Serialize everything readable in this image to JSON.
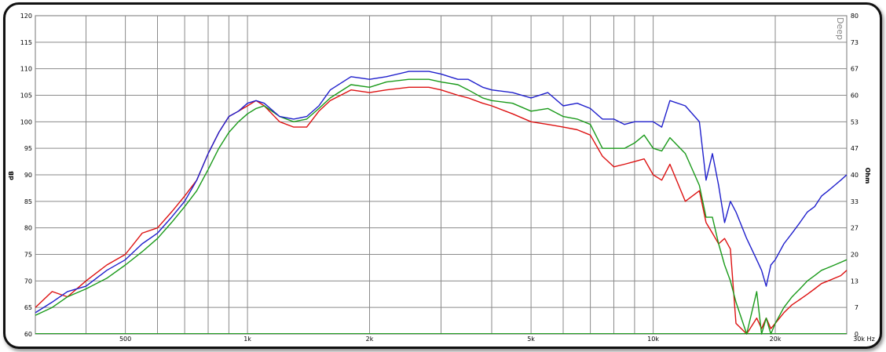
{
  "chart_data": {
    "type": "line",
    "title": "",
    "xlabel": "",
    "ylabel": "dB",
    "ylabel_right": "Ohm",
    "xscale": "log",
    "xlim": [
      300,
      30000
    ],
    "ylim": [
      60,
      120
    ],
    "ylim_right": [
      0,
      80
    ],
    "grid": true,
    "watermark": "Deep",
    "x_tick_labels": [
      {
        "value": 500,
        "label": "500"
      },
      {
        "value": 1000,
        "label": "1k"
      },
      {
        "value": 2000,
        "label": "2k"
      },
      {
        "value": 5000,
        "label": "5k"
      },
      {
        "value": 10000,
        "label": "10k"
      },
      {
        "value": 20000,
        "label": "20k"
      },
      {
        "value": 30000,
        "label": "30k Hz"
      }
    ],
    "x_grid": [
      400,
      500,
      600,
      700,
      800,
      900,
      1000,
      2000,
      3000,
      4000,
      5000,
      6000,
      7000,
      8000,
      9000,
      10000,
      20000
    ],
    "y_ticks": [
      "60",
      "65",
      "70",
      "75",
      "80",
      "85",
      "90",
      "95",
      "100",
      "105",
      "110",
      "115",
      "120"
    ],
    "y_right_ticks": [
      "0",
      "7",
      "13",
      "20",
      "27",
      "33",
      "40",
      "47",
      "53",
      "60",
      "67",
      "73",
      "80"
    ],
    "series": [
      {
        "color": "#1f1fcc",
        "x": [
          300,
          330,
          360,
          400,
          450,
          500,
          550,
          600,
          650,
          700,
          750,
          800,
          850,
          900,
          950,
          1000,
          1050,
          1100,
          1200,
          1300,
          1400,
          1500,
          1600,
          1800,
          2000,
          2200,
          2500,
          2800,
          3000,
          3300,
          3500,
          3800,
          4000,
          4500,
          5000,
          5500,
          6000,
          6500,
          7000,
          7500,
          8000,
          8500,
          9000,
          9500,
          10000,
          10500,
          11000,
          12000,
          13000,
          13500,
          14000,
          14500,
          15000,
          15500,
          16000,
          17000,
          18000,
          18500,
          19000,
          19500,
          20000,
          21000,
          22000,
          23000,
          24000,
          25000,
          26000,
          27000,
          28000,
          29000,
          30000
        ],
        "values": [
          64,
          66,
          68,
          69,
          72,
          74,
          77,
          79,
          82,
          85,
          89,
          94,
          98,
          101,
          102,
          103.5,
          104,
          103.5,
          101,
          100.5,
          101,
          103,
          106,
          108.5,
          108,
          108.5,
          109.5,
          109.5,
          109,
          108,
          108,
          106.5,
          106,
          105.5,
          104.5,
          105.5,
          103,
          103.5,
          102.5,
          100.5,
          100.5,
          99.5,
          100,
          100,
          100,
          99,
          104,
          103,
          100,
          89,
          94,
          88,
          81,
          85,
          83,
          78,
          74,
          72,
          69,
          73,
          74,
          77,
          79,
          81,
          83,
          84,
          86,
          87,
          88,
          89,
          90
        ]
      },
      {
        "color": "#1a9a1a",
        "x": [
          300,
          330,
          360,
          400,
          450,
          500,
          550,
          600,
          650,
          700,
          750,
          800,
          850,
          900,
          950,
          1000,
          1050,
          1100,
          1200,
          1300,
          1400,
          1500,
          1600,
          1800,
          2000,
          2200,
          2500,
          2800,
          3000,
          3300,
          3500,
          3800,
          4000,
          4500,
          5000,
          5500,
          6000,
          6500,
          7000,
          7500,
          8000,
          8500,
          9000,
          9500,
          10000,
          10500,
          11000,
          12000,
          13000,
          13500,
          14000,
          14500,
          15000,
          15500,
          16000,
          17000,
          18000,
          18500,
          19000,
          19500,
          20000,
          21000,
          22000,
          23000,
          24000,
          25000,
          26000,
          27000,
          28000,
          29000,
          30000
        ],
        "values": [
          63.5,
          65,
          67,
          68.5,
          70.5,
          73,
          75.5,
          78,
          81,
          84,
          87,
          91,
          95,
          98,
          100,
          101.5,
          102.5,
          103,
          101,
          100,
          100.5,
          102.5,
          104.5,
          107,
          106.5,
          107.5,
          108,
          108,
          107.5,
          107,
          106,
          104.5,
          104,
          103.5,
          102,
          102.5,
          101,
          100.5,
          99.5,
          95,
          95,
          95,
          96,
          97.5,
          95,
          94.5,
          97,
          94,
          88,
          82,
          82,
          77,
          73,
          70,
          66,
          60,
          68,
          60,
          63,
          60,
          62,
          65,
          67,
          68.5,
          70,
          71,
          72,
          72.5,
          73,
          73.5,
          74
        ]
      },
      {
        "color": "#dd1111",
        "x": [
          300,
          330,
          360,
          400,
          450,
          500,
          550,
          600,
          650,
          700,
          750,
          800,
          850,
          900,
          950,
          1000,
          1050,
          1100,
          1200,
          1300,
          1400,
          1500,
          1600,
          1800,
          2000,
          2200,
          2500,
          2800,
          3000,
          3300,
          3500,
          3800,
          4000,
          4500,
          5000,
          5500,
          6000,
          6500,
          7000,
          7500,
          8000,
          8500,
          9000,
          9500,
          10000,
          10500,
          11000,
          12000,
          13000,
          13500,
          14000,
          14500,
          15000,
          15500,
          16000,
          17000,
          18000,
          18500,
          19000,
          19500,
          20000,
          21000,
          22000,
          23000,
          24000,
          25000,
          26000,
          27000,
          28000,
          29000,
          30000
        ],
        "values": [
          65,
          68,
          67,
          70,
          73,
          75,
          79,
          80,
          83,
          86,
          89,
          94,
          98,
          101,
          102,
          103,
          104,
          103,
          100,
          99,
          99,
          102,
          104,
          106,
          105.5,
          106,
          106.5,
          106.5,
          106,
          105,
          104.5,
          103.5,
          103,
          101.5,
          100,
          99.5,
          99,
          98.5,
          97.5,
          93.5,
          91.5,
          92,
          92.5,
          93,
          90,
          89,
          92,
          85,
          87,
          81,
          79,
          77,
          78,
          76,
          62,
          60,
          63,
          61,
          63,
          61,
          62,
          64,
          65.5,
          66.5,
          67.5,
          68.5,
          69.5,
          70,
          70.5,
          71,
          72
        ]
      }
    ]
  }
}
